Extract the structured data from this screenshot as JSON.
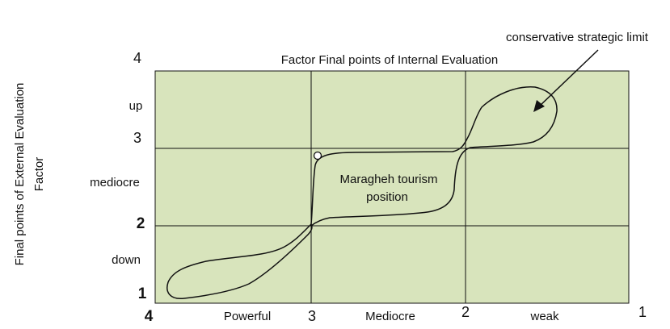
{
  "diagram": {
    "top_title": "Factor Final points of Internal Evaluation",
    "left_title_line1": "Final points of External Evaluation",
    "left_title_line2": "Factor",
    "colors": {
      "grid_fill": "#d8e4bc",
      "line": "#111111",
      "background": "#ffffff"
    },
    "x_axis": {
      "ticks": [
        {
          "value": "4"
        },
        {
          "value": "3"
        },
        {
          "value": "2"
        },
        {
          "value": "1"
        }
      ],
      "zone_labels": [
        "Powerful",
        "Mediocre",
        "weak"
      ]
    },
    "y_axis": {
      "ticks": [
        {
          "value": "4"
        },
        {
          "value": "3"
        },
        {
          "value": "2"
        },
        {
          "value": "1"
        }
      ],
      "zone_labels": [
        "up",
        "mediocre",
        "down"
      ]
    },
    "annotations": {
      "region_label_line1": "Maragheh tourism",
      "region_label_line2": "position",
      "arrow_label": "conservative strategic limit"
    }
  }
}
